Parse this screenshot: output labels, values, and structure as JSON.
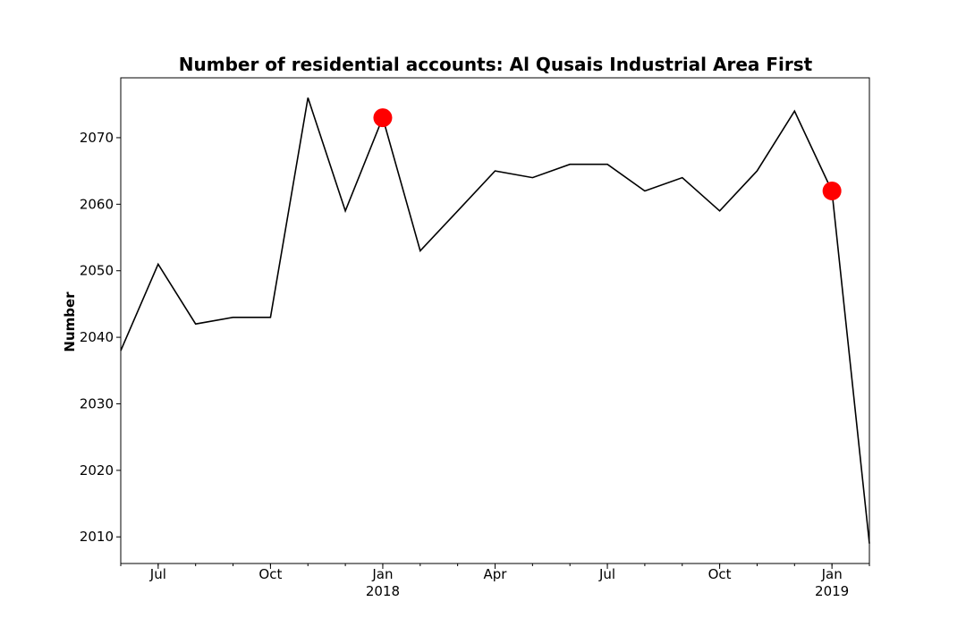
{
  "chart_data": {
    "type": "line",
    "title": "Number of residential accounts: Al Qusais Industrial Area First",
    "xlabel": "",
    "ylabel": "Number",
    "ylim": [
      2006,
      2079
    ],
    "xlim": [
      "2017-06",
      "2019-02"
    ],
    "grid": false,
    "line_color": "#000000",
    "marker_color": "#ff0000",
    "x": [
      "2017-06",
      "2017-07",
      "2017-08",
      "2017-09",
      "2017-10",
      "2017-11",
      "2017-12",
      "2018-01",
      "2018-02",
      "2018-03",
      "2018-04",
      "2018-05",
      "2018-06",
      "2018-07",
      "2018-08",
      "2018-09",
      "2018-10",
      "2018-11",
      "2018-12",
      "2019-01",
      "2019-02"
    ],
    "values": [
      2038,
      2051,
      2042,
      2043,
      2043,
      2076,
      2059,
      2073,
      2053,
      2059,
      2065,
      2064,
      2066,
      2066,
      2062,
      2064,
      2059,
      2065,
      2074,
      2062,
      2009
    ],
    "highlighted_points": [
      {
        "x": "2018-01",
        "y": 2073
      },
      {
        "x": "2019-01",
        "y": 2062
      }
    ],
    "y_ticks": [
      2010,
      2020,
      2030,
      2040,
      2050,
      2060,
      2070
    ],
    "x_ticks": [
      {
        "x": "2017-07",
        "label": "Jul",
        "year": ""
      },
      {
        "x": "2017-10",
        "label": "Oct",
        "year": ""
      },
      {
        "x": "2018-01",
        "label": "Jan",
        "year": "2018"
      },
      {
        "x": "2018-04",
        "label": "Apr",
        "year": ""
      },
      {
        "x": "2018-07",
        "label": "Jul",
        "year": ""
      },
      {
        "x": "2018-10",
        "label": "Oct",
        "year": ""
      },
      {
        "x": "2019-01",
        "label": "Jan",
        "year": "2019"
      }
    ]
  }
}
